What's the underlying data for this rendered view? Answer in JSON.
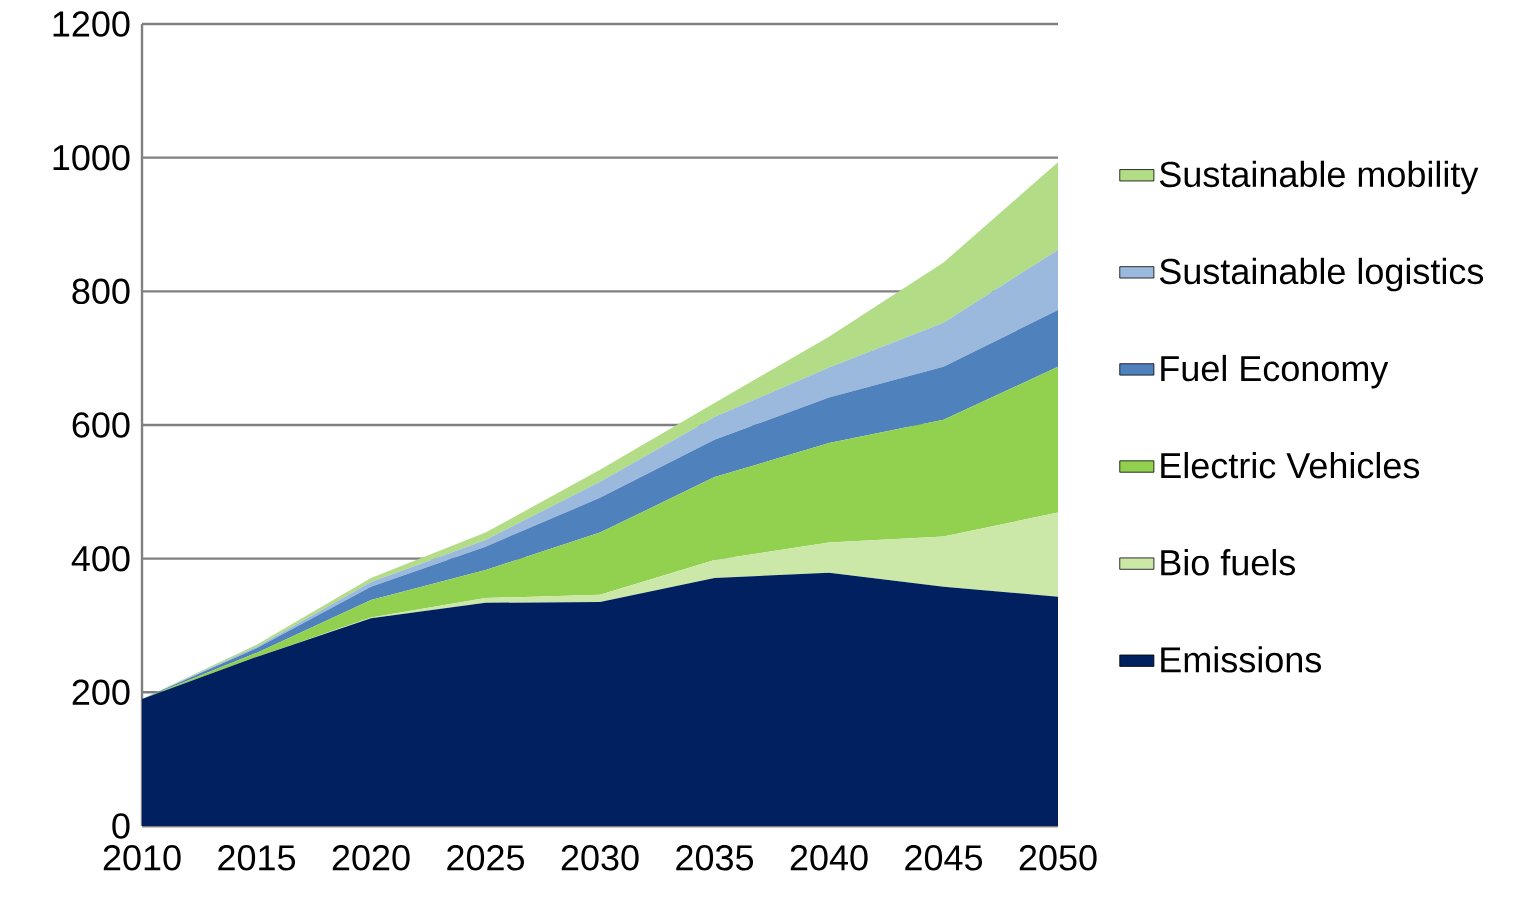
{
  "chart_data": {
    "type": "area",
    "stacked": true,
    "x": [
      2010,
      2015,
      2020,
      2025,
      2030,
      2035,
      2040,
      2045,
      2050
    ],
    "series": [
      {
        "name": "Emissions",
        "color": "#002060",
        "values": [
          190,
          253,
          311,
          334,
          335,
          371,
          379,
          358,
          343
        ]
      },
      {
        "name": "Bio fuels",
        "color": "#cbe8a8",
        "values": [
          0,
          0,
          1,
          7,
          11,
          27,
          45,
          75,
          126
        ]
      },
      {
        "name": "Electric Vehicles",
        "color": "#92d050",
        "values": [
          0,
          6,
          26,
          42,
          93,
          124,
          149,
          175,
          218
        ]
      },
      {
        "name": "Fuel Economy",
        "color": "#4f81bd",
        "values": [
          0,
          7,
          20,
          35,
          52,
          56,
          68,
          79,
          85
        ]
      },
      {
        "name": "Sustainable logistics",
        "color": "#9bb9dd",
        "values": [
          0,
          2,
          7,
          10,
          24,
          34,
          45,
          66,
          90
        ]
      },
      {
        "name": "Sustainable mobility",
        "color": "#b2dc85",
        "values": [
          0,
          3,
          6,
          11,
          18,
          21,
          46,
          90,
          131
        ]
      }
    ],
    "xlim": [
      2010,
      2050
    ],
    "xticks": [
      2010,
      2015,
      2020,
      2025,
      2030,
      2035,
      2040,
      2045,
      2050
    ],
    "ylim": [
      0,
      1200
    ],
    "yticks": [
      0,
      200,
      400,
      600,
      800,
      1000,
      1200
    ],
    "grid": "y",
    "legend": "right"
  }
}
